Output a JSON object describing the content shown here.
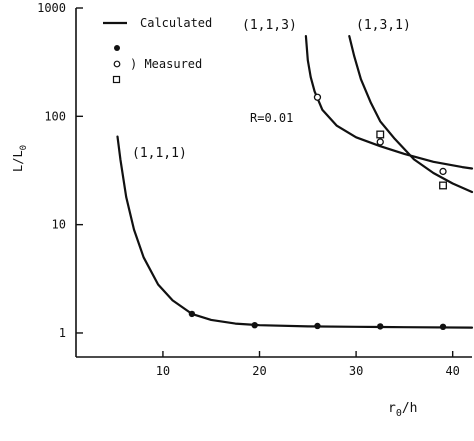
{
  "colors": {
    "ink": "#111111",
    "background": "#ffffff"
  },
  "chart_data": {
    "type": "line",
    "title": "",
    "xlabel": "r",
    "xlabel_sub": "0",
    "xlabel_tail": "/h",
    "ylabel": "L/L",
    "ylabel_sub": "0",
    "x_ticks": [
      "10",
      "20",
      "30",
      "40"
    ],
    "y_ticks": [
      "1",
      "10",
      "100",
      "1000"
    ],
    "xlim": [
      1,
      42
    ],
    "ylim": [
      0.6,
      1000
    ],
    "yscale": "log",
    "grid": false,
    "legend": {
      "position": "top-left",
      "calculated": "Calculated",
      "measured": ") Measured"
    },
    "annotations": {
      "r_value": "R=0.01"
    },
    "series": [
      {
        "name": "(1,1,1)",
        "curve": [
          [
            5.3,
            65
          ],
          [
            5.6,
            40
          ],
          [
            6.2,
            18
          ],
          [
            7,
            9
          ],
          [
            8,
            5
          ],
          [
            9.5,
            2.8
          ],
          [
            11,
            2
          ],
          [
            13,
            1.5
          ],
          [
            15,
            1.32
          ],
          [
            17.5,
            1.22
          ],
          [
            20,
            1.18
          ],
          [
            25,
            1.15
          ],
          [
            30,
            1.14
          ],
          [
            35,
            1.13
          ],
          [
            42,
            1.12
          ]
        ],
        "measured": [
          [
            13,
            1.5
          ],
          [
            19.5,
            1.18
          ],
          [
            26,
            1.16
          ],
          [
            32.5,
            1.15
          ],
          [
            39,
            1.14
          ]
        ],
        "marker": "filled-circle"
      },
      {
        "name": "(1,1,3)",
        "curve": [
          [
            24.8,
            550
          ],
          [
            25,
            330
          ],
          [
            25.3,
            230
          ],
          [
            25.7,
            170
          ],
          [
            26.5,
            115
          ],
          [
            28,
            82
          ],
          [
            30,
            64
          ],
          [
            32.5,
            53
          ],
          [
            35,
            45
          ],
          [
            38,
            38
          ],
          [
            41,
            34
          ],
          [
            42,
            33
          ]
        ],
        "measured": [
          [
            26,
            150
          ],
          [
            32.5,
            58
          ],
          [
            39,
            31
          ]
        ],
        "marker": "open-circle"
      },
      {
        "name": "(1,3,1)",
        "curve": [
          [
            29.3,
            550
          ],
          [
            29.8,
            360
          ],
          [
            30.5,
            220
          ],
          [
            31.5,
            135
          ],
          [
            32.5,
            90
          ],
          [
            34,
            62
          ],
          [
            36,
            40
          ],
          [
            38,
            30
          ],
          [
            40,
            24
          ],
          [
            42,
            20
          ]
        ],
        "measured": [
          [
            32.5,
            68
          ],
          [
            39,
            23
          ]
        ],
        "marker": "open-square"
      }
    ]
  }
}
